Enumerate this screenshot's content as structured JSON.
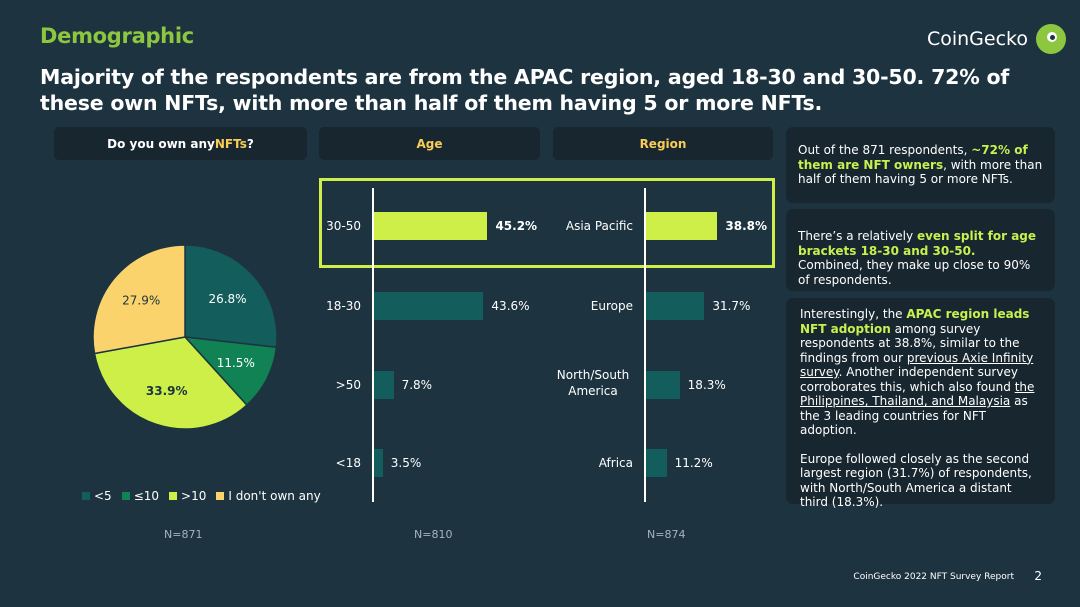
{
  "section_title": "Demographic",
  "headline": "Majority of the respondents are from the APAC region, aged 18-30 and 30-50. 72% of these own NFTs, with more than half of them having 5 or more NFTs.",
  "brand": {
    "name": "CoinGecko",
    "logo_icon": "gecko-logo-icon",
    "color": "#8dc63f"
  },
  "headers": {
    "nft": {
      "prefix": "Do you own any ",
      "highlight": "NFTs",
      "suffix": "?"
    },
    "age": "Age",
    "region": "Region"
  },
  "chart_data": [
    {
      "type": "pie",
      "title": "Do you own any NFTs?",
      "categories": [
        "<5",
        "≤10",
        ">10",
        "I don't own any"
      ],
      "values": [
        26.8,
        11.5,
        33.9,
        27.9
      ],
      "labels": [
        "26.8%",
        "11.5%",
        "33.9%",
        "27.9%"
      ],
      "colors": [
        "#135d5c",
        "#108253",
        "#cdef48",
        "#fbd36c"
      ],
      "n": "N=871"
    },
    {
      "type": "bar",
      "orientation": "horizontal",
      "title": "Age",
      "categories": [
        "30-50",
        "18-30",
        ">50",
        "<18"
      ],
      "values": [
        45.2,
        43.6,
        7.8,
        3.5
      ],
      "labels": [
        "45.2%",
        "43.6%",
        "7.8%",
        "3.5%"
      ],
      "highlight_index": 0,
      "colors": {
        "highlight": "#cdef48",
        "default": "#135d5c"
      },
      "n": "N=810"
    },
    {
      "type": "bar",
      "orientation": "horizontal",
      "title": "Region",
      "categories": [
        "Asia Pacific",
        "Europe",
        "North/South America",
        "Africa"
      ],
      "values": [
        38.8,
        31.7,
        18.3,
        11.2
      ],
      "labels": [
        "38.8%",
        "31.7%",
        "18.3%",
        "11.2%"
      ],
      "highlight_index": 0,
      "colors": {
        "highlight": "#cdef48",
        "default": "#135d5c"
      },
      "n": "N=874"
    }
  ],
  "cards": {
    "c1": {
      "t1": "Out of the 871 respondents, ",
      "g1": "~72% of them are NFT owners",
      "t2": ", with more than half of them having 5 or more NFTs."
    },
    "c2": {
      "t1": "There’s a relatively ",
      "g1": "even split for age brackets 18-30 and 30-50.",
      "t2": " Combined, they make up close to 90% of respondents."
    },
    "c3": {
      "t1": "Interestingly, the ",
      "g1": "APAC region leads NFT adoption",
      "t2": " among survey respondents at 38.8%, similar to the findings from our ",
      "link1": "previous Axie Infinity survey",
      "t3": ". Another independent survey corroborates this, which also found ",
      "link2": "the Philippines, Thailand, and Malaysia",
      "t4": " as the 3 leading countries for NFT adoption.",
      "p2": "Europe followed closely as the second largest region (31.7%) of respondents, with North/South America a distant third (18.3%)."
    }
  },
  "footer": "CoinGecko 2022 NFT Survey Report",
  "page_number": "2"
}
